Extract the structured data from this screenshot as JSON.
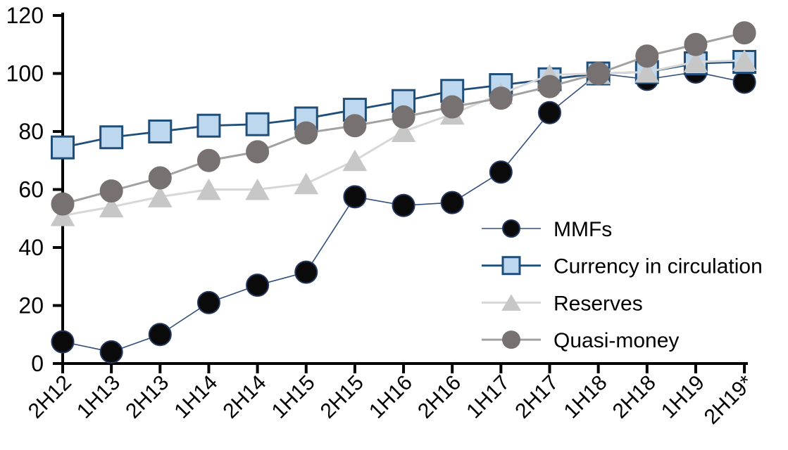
{
  "chart_data": {
    "type": "line",
    "title": "",
    "xlabel": "",
    "ylabel": "",
    "categories": [
      "2H12",
      "1H13",
      "2H13",
      "1H14",
      "2H14",
      "1H15",
      "2H15",
      "1H16",
      "2H16",
      "1H17",
      "2H17",
      "1H18",
      "2H18",
      "1H19",
      "2H19*"
    ],
    "y_axis": {
      "min": 0,
      "max": 120,
      "step": 20,
      "ticks": [
        0,
        20,
        40,
        60,
        80,
        100,
        120
      ]
    },
    "grid": "off",
    "legend_position": "inside-right",
    "series": [
      {
        "id": "mmfs",
        "name": "MMFs",
        "marker": "circle",
        "marker_fill": "#0a0a0a",
        "marker_stroke": "#24365e",
        "line_color": "#33507a",
        "line_width": 1.6,
        "values": [
          7.5,
          4,
          10,
          21,
          27,
          31.5,
          57.5,
          54.5,
          55.5,
          66,
          86.5,
          100,
          98,
          100.5,
          97
        ]
      },
      {
        "id": "currency",
        "name": "Currency in circulation",
        "marker": "square",
        "marker_fill": "#bdd7ee",
        "marker_stroke": "#1f4e79",
        "line_color": "#1f4e79",
        "line_width": 2.8,
        "values": [
          74.5,
          78,
          80,
          82,
          82.5,
          84.5,
          87.5,
          90.5,
          94,
          96,
          98,
          100,
          100.5,
          103.5,
          104
        ]
      },
      {
        "id": "reserves",
        "name": "Reserves",
        "marker": "triangle",
        "marker_fill": "#c7c7c7",
        "marker_stroke": "#c7c7c7",
        "line_color": "#d7d7d7",
        "line_width": 3,
        "values": [
          51,
          54,
          57.5,
          60,
          60,
          62,
          70,
          80,
          86,
          93,
          99.5,
          100,
          100.5,
          104,
          104.5
        ]
      },
      {
        "id": "quasi",
        "name": "Quasi-money",
        "marker": "circle",
        "marker_fill": "#777271",
        "marker_stroke": "#777271",
        "line_color": "#a3a0a0",
        "line_width": 3,
        "values": [
          55,
          59.5,
          64,
          70,
          73,
          79.5,
          82,
          85,
          88.5,
          91.5,
          95.5,
          100,
          106,
          110,
          114
        ]
      }
    ],
    "axis_color": "#000000"
  }
}
